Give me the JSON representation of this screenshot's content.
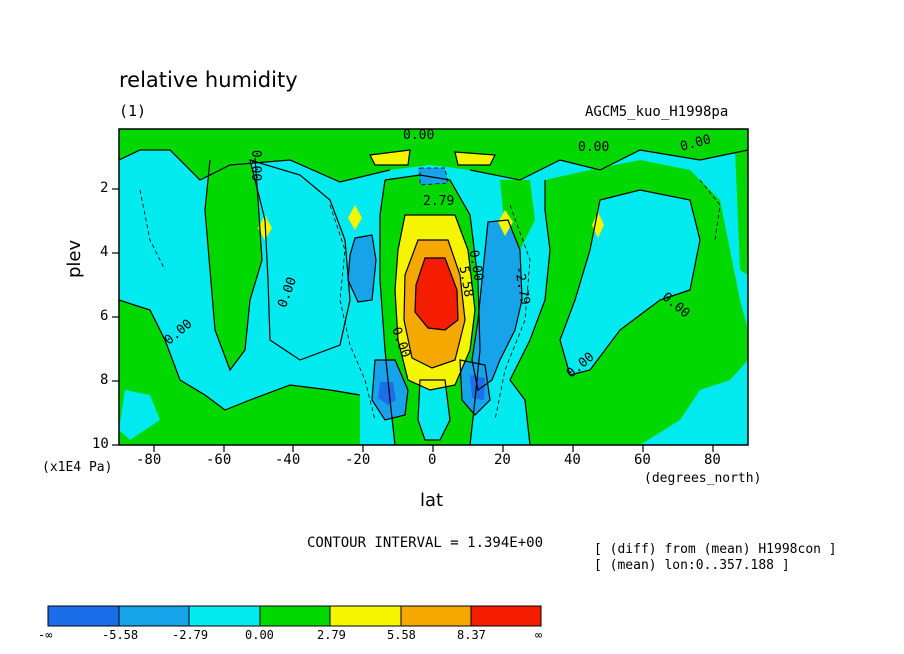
{
  "chart_data": {
    "type": "contour",
    "title": "relative humidity",
    "panel_label": "(1)",
    "run_name": "AGCM5_kuo_H1998pa",
    "xlabel": "lat",
    "x_unit": "(degrees_north)",
    "ylabel": "plev",
    "y_unit": "(x1E4 Pa)",
    "xlim": [
      -90,
      90
    ],
    "ylim": [
      10,
      0.5
    ],
    "x_ticks": [
      "-80",
      "-60",
      "-40",
      "-20",
      "0",
      "20",
      "40",
      "60",
      "80"
    ],
    "y_ticks": [
      "2",
      "4",
      "6",
      "8",
      "10"
    ],
    "contour_interval_text": "CONTOUR INTERVAL = 1.394E+00",
    "notes": [
      "[ (diff) from (mean) H1998con ]",
      "[ (mean) lon:0..357.188 ]"
    ],
    "contour_labels": [
      "0.00",
      "0.00",
      "0.00",
      "0.00",
      "0.00",
      "0.00",
      "0.00",
      "0.00",
      "0.00",
      "0.00",
      "2.79",
      "5.58",
      "-2.79"
    ],
    "colorbar": {
      "labels": [
        "-∞",
        "-5.58",
        "-2.79",
        "0.00",
        "2.79",
        "5.58",
        "8.37",
        "∞"
      ],
      "colors": [
        "#1a6eea",
        "#16a3ea",
        "#00eaf0",
        "#00d800",
        "#f5f500",
        "#f5a800",
        "#f51d00"
      ]
    }
  }
}
